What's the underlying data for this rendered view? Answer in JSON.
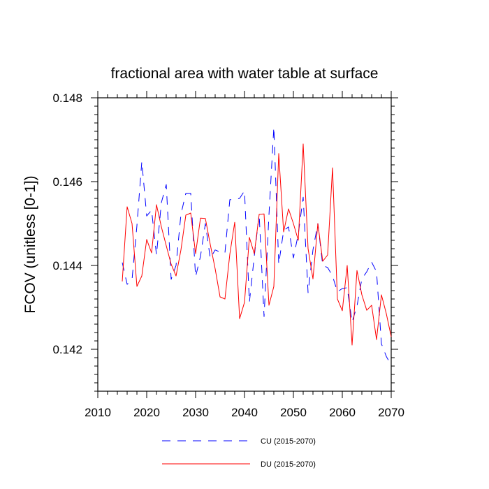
{
  "chart_data": {
    "type": "line",
    "title": "fractional area with water table at surface",
    "xlabel": "",
    "ylabel": "FCOV  (unitless [0-1])",
    "xlim": [
      2010,
      2070
    ],
    "ylim": [
      0.141,
      0.148
    ],
    "xticks": [
      2010,
      2020,
      2030,
      2040,
      2050,
      2060,
      2070
    ],
    "yticks": [
      0.142,
      0.144,
      0.146,
      0.148
    ],
    "ytick_labels": [
      "0.142",
      "0.144",
      "0.146",
      "0.148"
    ],
    "legend_position": "bottom-center",
    "series": [
      {
        "name": "CU (2015-2070)",
        "color": "#0000ff",
        "dash": "dashed",
        "x": [
          2015,
          2016,
          2017,
          2018,
          2019,
          2020,
          2021,
          2022,
          2023,
          2024,
          2025,
          2026,
          2027,
          2028,
          2029,
          2030,
          2031,
          2032,
          2033,
          2034,
          2035,
          2036,
          2037,
          2038,
          2039,
          2040,
          2041,
          2042,
          2043,
          2044,
          2045,
          2046,
          2047,
          2048,
          2049,
          2050,
          2051,
          2052,
          2053,
          2054,
          2055,
          2056,
          2057,
          2058,
          2059,
          2060,
          2061,
          2062,
          2063,
          2064,
          2065,
          2066,
          2067,
          2068,
          2069,
          2070
        ],
        "values": [
          0.14407,
          0.14355,
          0.14366,
          0.14495,
          0.14648,
          0.14518,
          0.14532,
          0.14425,
          0.1455,
          0.14593,
          0.14367,
          0.144,
          0.14522,
          0.14572,
          0.14572,
          0.14373,
          0.14422,
          0.145,
          0.14417,
          0.14437,
          0.14432,
          0.1443,
          0.14557,
          0.14557,
          0.1456,
          0.14578,
          0.14312,
          0.14422,
          0.14522,
          0.14278,
          0.1452,
          0.1473,
          0.14403,
          0.14483,
          0.14492,
          0.14418,
          0.14475,
          0.14563,
          0.14335,
          0.14437,
          0.145,
          0.144,
          0.14395,
          0.14375,
          0.14337,
          0.14345,
          0.14347,
          0.14265,
          0.14303,
          0.14368,
          0.14385,
          0.14408,
          0.14385,
          0.14213,
          0.14183,
          0.14162
        ]
      },
      {
        "name": "DU (2015-2070)",
        "color": "#ff0000",
        "dash": "solid",
        "x": [
          2015,
          2016,
          2017,
          2018,
          2019,
          2020,
          2021,
          2022,
          2023,
          2024,
          2025,
          2026,
          2027,
          2028,
          2029,
          2030,
          2031,
          2032,
          2033,
          2034,
          2035,
          2036,
          2037,
          2038,
          2039,
          2040,
          2041,
          2042,
          2043,
          2044,
          2045,
          2046,
          2047,
          2048,
          2049,
          2050,
          2051,
          2052,
          2053,
          2054,
          2055,
          2056,
          2057,
          2058,
          2059,
          2060,
          2061,
          2062,
          2063,
          2064,
          2065,
          2066,
          2067,
          2068,
          2069,
          2070
        ],
        "values": [
          0.14362,
          0.1454,
          0.145,
          0.1435,
          0.14375,
          0.14462,
          0.1443,
          0.14545,
          0.14492,
          0.14447,
          0.14403,
          0.14375,
          0.14437,
          0.1452,
          0.14525,
          0.14428,
          0.14513,
          0.14512,
          0.1445,
          0.14392,
          0.14325,
          0.1432,
          0.14427,
          0.14503,
          0.14273,
          0.14312,
          0.14467,
          0.14428,
          0.14522,
          0.14523,
          0.14305,
          0.1435,
          0.14667,
          0.1448,
          0.14535,
          0.145,
          0.1446,
          0.1469,
          0.1444,
          0.14368,
          0.145,
          0.1441,
          0.14425,
          0.14633,
          0.1432,
          0.14292,
          0.144,
          0.1421,
          0.14388,
          0.1433,
          0.14293,
          0.14305,
          0.14223,
          0.1433,
          0.14285,
          0.1423
        ]
      }
    ]
  }
}
